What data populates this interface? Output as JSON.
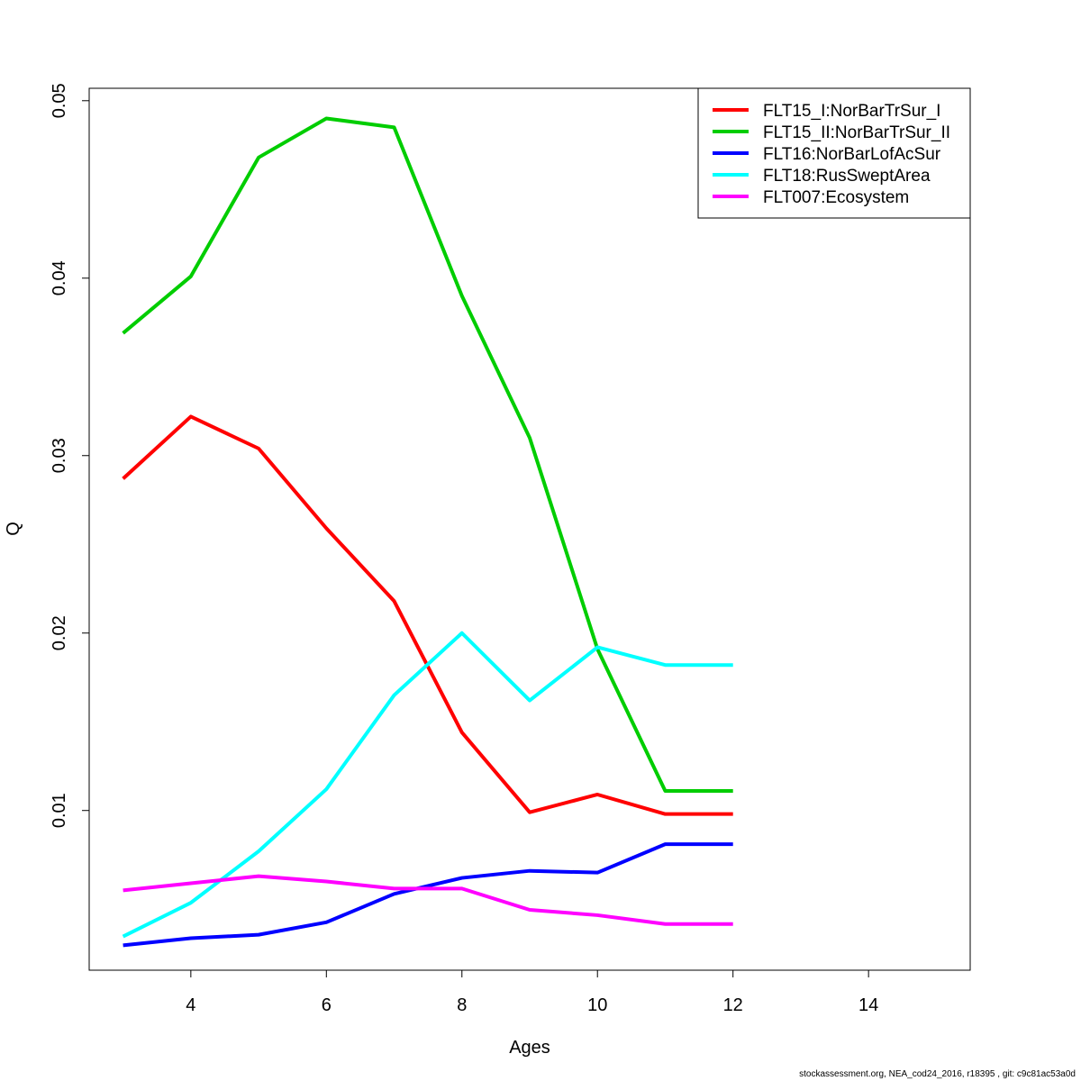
{
  "chart_data": {
    "type": "line",
    "xlabel": "Ages",
    "ylabel": "Q",
    "xlim": [
      2.5,
      15.5
    ],
    "ylim": [
      0.001,
      0.0507
    ],
    "x_ticks": [
      4,
      6,
      8,
      10,
      12,
      14
    ],
    "y_ticks": [
      0.01,
      0.02,
      0.03,
      0.04,
      0.05
    ],
    "legend_position": "top-right",
    "x": [
      3,
      4,
      5,
      6,
      7,
      8,
      9,
      10,
      11,
      12
    ],
    "series": [
      {
        "name": "FLT15_I:NorBarTrSur_I",
        "color": "#ff0000",
        "values": [
          0.0287,
          0.0322,
          0.0304,
          0.0259,
          0.0218,
          0.0144,
          0.0099,
          0.0109,
          0.0098,
          0.0098
        ]
      },
      {
        "name": "FLT15_II:NorBarTrSur_II",
        "color": "#00cd00",
        "values": [
          0.0369,
          0.0401,
          0.0468,
          0.049,
          0.0485,
          0.039,
          0.031,
          0.0191,
          0.0111,
          0.0111
        ]
      },
      {
        "name": "FLT16:NorBarLofAcSur",
        "color": "#0000ff",
        "values": [
          0.0024,
          0.0028,
          0.003,
          0.0037,
          0.0053,
          0.0062,
          0.0066,
          0.0065,
          0.0081,
          0.0081
        ]
      },
      {
        "name": "FLT18:RusSweptArea",
        "color": "#00ffff",
        "values": [
          0.0029,
          0.0048,
          0.0077,
          0.0112,
          0.0165,
          0.02,
          0.0162,
          0.0192,
          0.0182,
          0.0182
        ]
      },
      {
        "name": "FLT007:Ecosystem",
        "color": "#ff00ff",
        "values": [
          0.0055,
          0.0059,
          0.0063,
          0.006,
          0.0056,
          0.0056,
          0.0044,
          0.0041,
          0.0036,
          0.0036
        ]
      }
    ]
  },
  "footer": "stockassessment.org, NEA_cod24_2016, r18395 , git: c9c81ac53a0d"
}
